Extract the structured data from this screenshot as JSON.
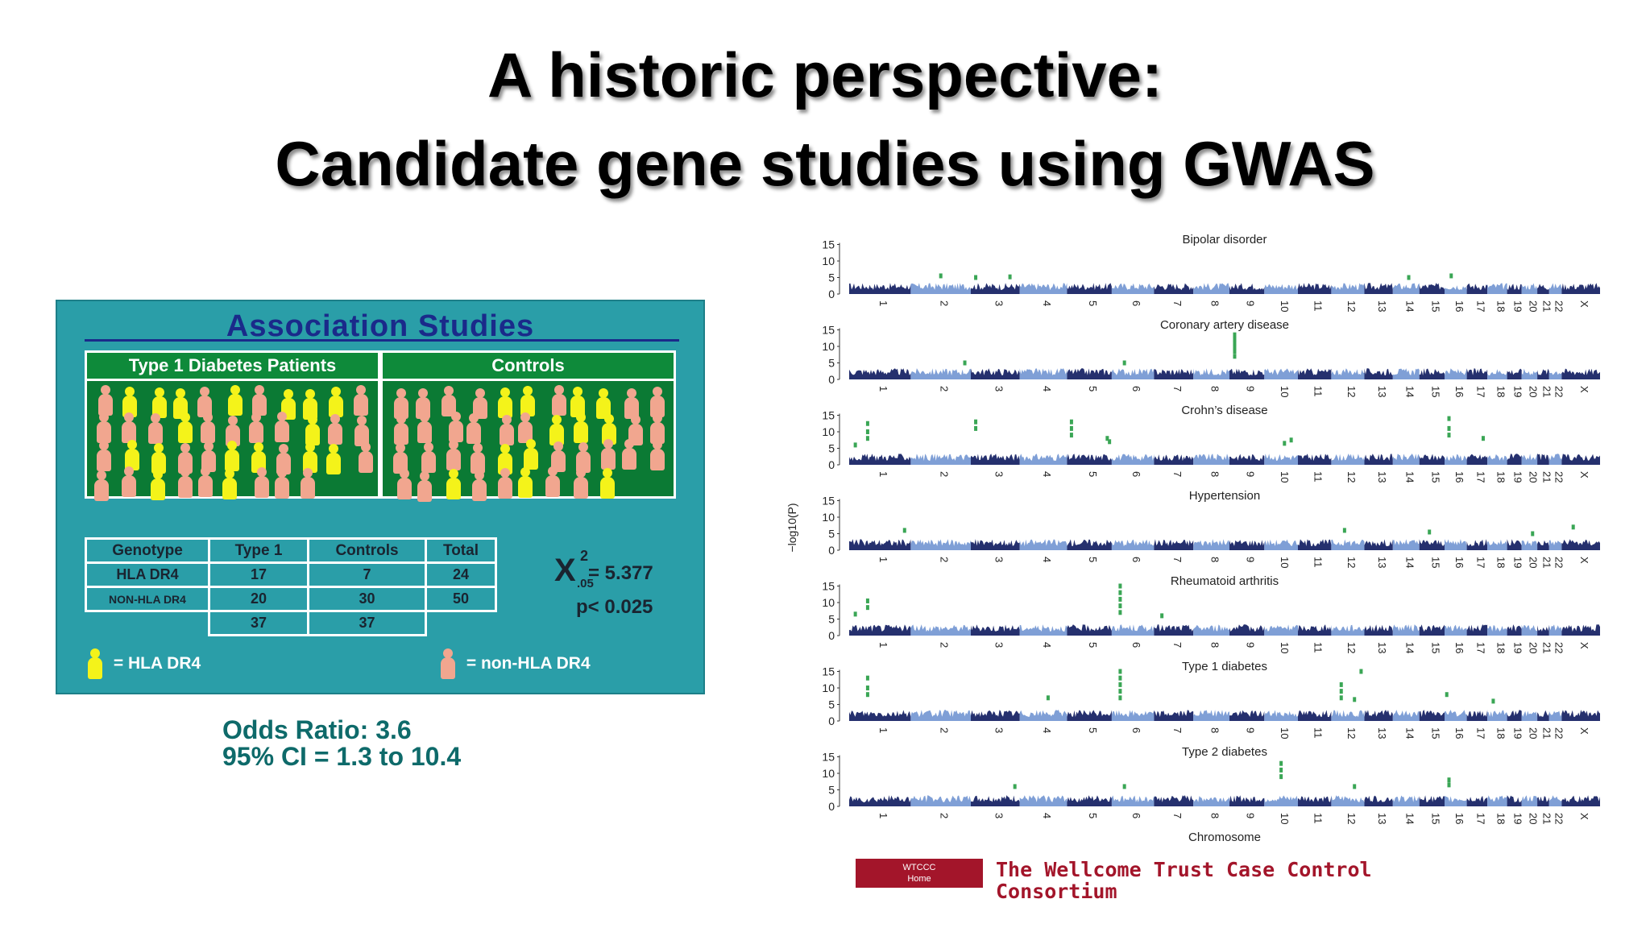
{
  "slide": {
    "title_line1": "A historic perspective:",
    "title_line2": "Candidate gene studies using GWAS"
  },
  "association": {
    "title": "Association Studies",
    "patients_label": "Type 1 Diabetes Patients",
    "controls_label": "Controls",
    "table": {
      "headers": [
        "Genotype",
        "Type 1",
        "Controls",
        "Total"
      ],
      "rows": [
        [
          "HLA DR4",
          "17",
          "7",
          "24"
        ],
        [
          "NON-HLA DR4",
          "20",
          "30",
          "50"
        ],
        [
          "",
          "37",
          "37",
          ""
        ]
      ]
    },
    "chi_symbol": "X",
    "chi_sup": "2",
    "chi_sub": ".05",
    "chi_value": "= 5.377",
    "p_value": "p< 0.025",
    "legend_hla": "= HLA DR4",
    "legend_non": "= non-HLA DR4",
    "colors": {
      "panel": "#2a9ea8",
      "group_bg": "#0b7a34",
      "hla": "#f4f31a",
      "non_hla": "#f1a68f"
    }
  },
  "odds": {
    "ratio": "Odds Ratio: 3.6",
    "ci": "95% CI = 1.3 to 10.4"
  },
  "chart_data": {
    "type": "scatter",
    "ylabel": "−log10(P)",
    "xlabel": "Chromosome",
    "ylim": [
      0,
      15
    ],
    "yticks": [
      0,
      5,
      10,
      15
    ],
    "chromosomes": [
      "1",
      "2",
      "3",
      "4",
      "5",
      "6",
      "7",
      "8",
      "9",
      "10",
      "11",
      "12",
      "13",
      "14",
      "15",
      "16",
      "17",
      "18",
      "19",
      "20",
      "21",
      "22",
      "X"
    ],
    "chromosome_sizes": [
      249,
      243,
      198,
      191,
      181,
      171,
      159,
      146,
      141,
      136,
      135,
      134,
      115,
      107,
      102,
      90,
      83,
      80,
      59,
      63,
      48,
      51,
      155
    ],
    "colors": {
      "odd": "#25306e",
      "even": "#7f9fd6",
      "hit": "#3aa655"
    },
    "panels": [
      {
        "title": "Bipolar disorder",
        "hits": [
          [
            "2",
            0.5,
            5.5
          ],
          [
            "3",
            0.1,
            5.0
          ],
          [
            "3",
            0.8,
            5.2
          ],
          [
            "14",
            0.6,
            5.0
          ],
          [
            "16",
            0.3,
            5.5
          ]
        ]
      },
      {
        "title": "Coronary artery disease",
        "hits": [
          [
            "9",
            0.15,
            13.5
          ],
          [
            "9",
            0.15,
            12.2
          ],
          [
            "9",
            0.15,
            11.0
          ],
          [
            "9",
            0.15,
            9.8
          ],
          [
            "9",
            0.15,
            8.5
          ],
          [
            "9",
            0.15,
            7.0
          ],
          [
            "2",
            0.9,
            5.0
          ],
          [
            "6",
            0.3,
            5.0
          ]
        ]
      },
      {
        "title": "Crohn’s disease",
        "hits": [
          [
            "1",
            0.3,
            12.5
          ],
          [
            "1",
            0.3,
            10.0
          ],
          [
            "1",
            0.3,
            8.0
          ],
          [
            "3",
            0.1,
            13.0
          ],
          [
            "3",
            0.1,
            11.0
          ],
          [
            "5",
            0.1,
            13.0
          ],
          [
            "5",
            0.1,
            11.0
          ],
          [
            "5",
            0.1,
            9.0
          ],
          [
            "5",
            0.9,
            8.0
          ],
          [
            "5",
            0.95,
            7.0
          ],
          [
            "10",
            0.8,
            7.5
          ],
          [
            "10",
            0.6,
            6.5
          ],
          [
            "16",
            0.2,
            14.0
          ],
          [
            "16",
            0.2,
            11.0
          ],
          [
            "16",
            0.2,
            9.0
          ],
          [
            "17",
            0.8,
            8.0
          ],
          [
            "1",
            0.1,
            6.0
          ]
        ]
      },
      {
        "title": "Hypertension",
        "hits": [
          [
            "1",
            0.9,
            6.0
          ],
          [
            "12",
            0.4,
            6.0
          ],
          [
            "15",
            0.4,
            5.5
          ],
          [
            "20",
            0.7,
            5.0
          ],
          [
            "X",
            0.3,
            7.0
          ]
        ]
      },
      {
        "title": "Rheumatoid arthritis",
        "hits": [
          [
            "6",
            0.2,
            15.0
          ],
          [
            "6",
            0.2,
            13.0
          ],
          [
            "6",
            0.2,
            11.0
          ],
          [
            "6",
            0.2,
            9.0
          ],
          [
            "6",
            0.2,
            7.0
          ],
          [
            "1",
            0.3,
            10.5
          ],
          [
            "1",
            0.3,
            8.5
          ],
          [
            "1",
            0.1,
            6.5
          ],
          [
            "7",
            0.2,
            6.0
          ]
        ]
      },
      {
        "title": "Type 1 diabetes",
        "hits": [
          [
            "6",
            0.2,
            15.0
          ],
          [
            "6",
            0.2,
            13.0
          ],
          [
            "6",
            0.2,
            11.0
          ],
          [
            "6",
            0.2,
            9.0
          ],
          [
            "6",
            0.2,
            7.0
          ],
          [
            "1",
            0.3,
            13.0
          ],
          [
            "1",
            0.3,
            10.0
          ],
          [
            "1",
            0.3,
            8.0
          ],
          [
            "12",
            0.3,
            11.0
          ],
          [
            "12",
            0.3,
            9.0
          ],
          [
            "12",
            0.3,
            7.0
          ],
          [
            "12",
            0.7,
            6.5
          ],
          [
            "12",
            0.9,
            15.0
          ],
          [
            "16",
            0.1,
            8.0
          ],
          [
            "4",
            0.6,
            7.0
          ],
          [
            "18",
            0.3,
            6.0
          ]
        ]
      },
      {
        "title": "Type 2 diabetes",
        "hits": [
          [
            "10",
            0.5,
            13.0
          ],
          [
            "10",
            0.5,
            11.0
          ],
          [
            "10",
            0.5,
            9.0
          ],
          [
            "6",
            0.3,
            6.0
          ],
          [
            "16",
            0.2,
            8.0
          ],
          [
            "16",
            0.2,
            6.5
          ],
          [
            "12",
            0.7,
            6.0
          ],
          [
            "3",
            0.9,
            6.0
          ]
        ]
      }
    ]
  },
  "footer": {
    "logo_line1": "WTCCC",
    "logo_line2": "Home",
    "org_line1": "The Wellcome Trust Case Control",
    "org_line2": "Consortium"
  }
}
